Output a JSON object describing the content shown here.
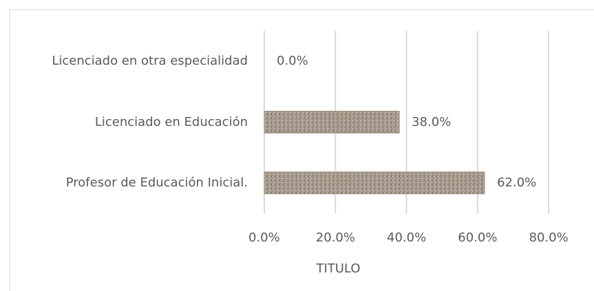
{
  "chart_data": {
    "type": "bar",
    "orientation": "horizontal",
    "categories": [
      "Licenciado en otra especialidad",
      "Licenciado en Educación",
      "Profesor de Educación Inicial."
    ],
    "values": [
      0,
      38,
      62
    ],
    "value_labels": [
      "0.0%",
      "38.0%",
      "62.0%"
    ],
    "color": "#a3978a",
    "xlabel": "TITULO",
    "xlim": [
      0,
      80
    ],
    "xticks": [
      {
        "value": 0,
        "label": "0.0%"
      },
      {
        "value": 20,
        "label": "20.0%"
      },
      {
        "value": 40,
        "label": "40.0%"
      },
      {
        "value": 60,
        "label": "60.0%"
      },
      {
        "value": 80,
        "label": "80.0%"
      }
    ],
    "grid": true
  }
}
